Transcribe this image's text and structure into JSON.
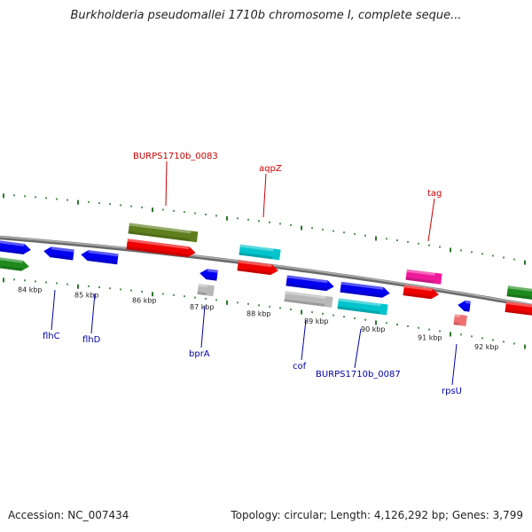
{
  "header": {
    "title": "Burkholderia pseudomallei 1710b chromosome I, complete seque..."
  },
  "footer": {
    "accession": "Accession: NC_007434",
    "summary": "Topology: circular; Length: 4,126,292 bp; Genes: 3,799"
  },
  "colors": {
    "backbone": "#8a8a8a",
    "tick": "#2a7a2a",
    "label_red": "#cc0000",
    "label_blue": "#0000aa",
    "blue": "#0000ee",
    "red": "#ee0000",
    "green": "#1e8a1e",
    "olive": "#5f7f1e",
    "cyan": "#00c4cc",
    "magenta": "#ee1a9a",
    "gray": "#b8b8b8",
    "pink": "#ee7070"
  },
  "scale": {
    "labels": [
      "84 kbp",
      "85 kbp",
      "86 kbp",
      "87 kbp",
      "88 kbp",
      "89 kbp",
      "90 kbp",
      "91 kbp",
      "92 kbp"
    ]
  },
  "genes": {
    "above": [
      "BURPS1710b_0083",
      "aqpZ",
      "tag"
    ],
    "below": [
      "flhC",
      "flhD",
      "bprA",
      "cof",
      "BURPS1710b_0087",
      "rpsU"
    ]
  }
}
